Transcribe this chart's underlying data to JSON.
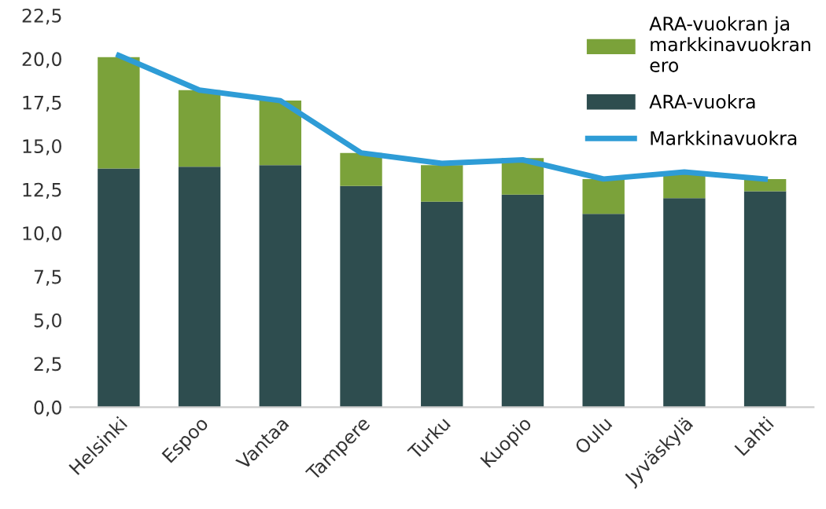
{
  "chart_data": {
    "type": "bar",
    "stacked": true,
    "categories": [
      "Helsinki",
      "Espoo",
      "Vantaa",
      "Tampere",
      "Turku",
      "Kuopio",
      "Oulu",
      "Jyväskylä",
      "Lahti"
    ],
    "series": [
      {
        "name": "ARA-vuokra",
        "color": "#2e4d4f",
        "values": [
          13.7,
          13.8,
          13.9,
          12.7,
          11.8,
          12.2,
          11.1,
          12.0,
          12.4
        ]
      },
      {
        "name": "ARA-vuokran ja markkinavuokran ero",
        "color": "#7ba23a",
        "values": [
          6.4,
          4.4,
          3.7,
          1.9,
          2.1,
          2.1,
          2.0,
          1.4,
          0.7
        ]
      },
      {
        "name": "Markkinavuokra",
        "type": "line",
        "color": "#2e9cd6",
        "values": [
          20.2,
          18.2,
          17.6,
          14.6,
          14.0,
          14.2,
          13.1,
          13.5,
          13.1
        ]
      }
    ],
    "ylim": [
      0,
      22.5
    ],
    "yticks": [
      {
        "value": 0,
        "label": "0,0"
      },
      {
        "value": 2.5,
        "label": "2,5"
      },
      {
        "value": 5,
        "label": "5,0"
      },
      {
        "value": 7.5,
        "label": "7,5"
      },
      {
        "value": 10,
        "label": "10,0"
      },
      {
        "value": 12.5,
        "label": "12,5"
      },
      {
        "value": 15,
        "label": "15,0"
      },
      {
        "value": 17.5,
        "label": "17,5"
      },
      {
        "value": 20,
        "label": "20,0"
      },
      {
        "value": 22.5,
        "label": "22,5"
      }
    ],
    "grid": false,
    "legend": "top right",
    "marker": "none"
  }
}
